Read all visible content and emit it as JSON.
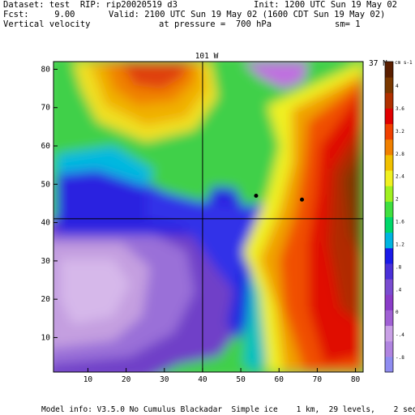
{
  "header": {
    "dataset": "Dataset: test  RIP: rip20020519 d3",
    "init": "Init: 1200 UTC Sun 19 May 02",
    "fcst": "Fcst:     9.00",
    "valid": "Valid: 2100 UTC Sun 19 May 02 (1600 CDT Sun 19 May 02)",
    "field": "Vertical velocity",
    "pressure": "at pressure =  700 hPa",
    "smoothing": "sm= 1"
  },
  "footer": {
    "model_info": "Model info: V3.5.0 No Cumulus Blackadar  Simple ice    1 km,  29 levels,    2 sec"
  },
  "chart_data": {
    "type": "heatmap",
    "field": "Vertical velocity",
    "units": "cm s-1",
    "xlim": [
      1,
      82
    ],
    "ylim": [
      1,
      82
    ],
    "x_ticks": [
      "10",
      "20",
      "30",
      "40",
      "50",
      "60",
      "70",
      "80"
    ],
    "y_ticks": [
      "10",
      "20",
      "30",
      "40",
      "50",
      "60",
      "70",
      "80"
    ],
    "crosshair": {
      "x": 40,
      "y": 41,
      "x_label": "101 W",
      "y_label": "37 N"
    },
    "markers": [
      {
        "x": 54,
        "y": 47
      },
      {
        "x": 66,
        "y": 46
      }
    ],
    "colorbar": {
      "labels": [
        "-.8",
        "-.4",
        "0",
        ".4",
        ".8",
        "1.2",
        "1.6",
        "2",
        "2.4",
        "2.8",
        "3.2",
        "3.6",
        "4"
      ],
      "units_label": "cm s-1",
      "colors": [
        "#8f8cf0",
        "#b084e0",
        "#c9a0e6",
        "#a060d4",
        "#8a3cc8",
        "#7a4cd0",
        "#4a30d8",
        "#1a1ae8",
        "#00b4e0",
        "#00d86a",
        "#40e040",
        "#a0f020",
        "#f0f020",
        "#f0c000",
        "#f08000",
        "#f04000",
        "#e00000",
        "#b03000",
        "#7a3800",
        "#5a1e00"
      ]
    },
    "grid": false
  }
}
